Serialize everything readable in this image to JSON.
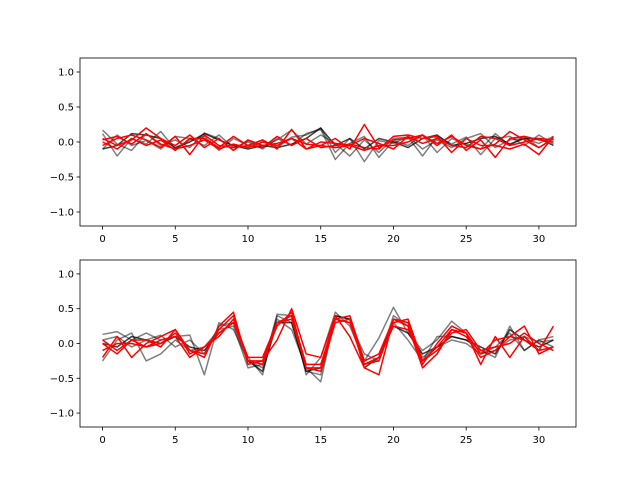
{
  "chart_data": [
    {
      "type": "line",
      "xlim": [
        -1.55,
        32.55
      ],
      "ylim": [
        -1.2,
        1.2
      ],
      "xticks": [
        0,
        5,
        10,
        15,
        20,
        25,
        30
      ],
      "yticks": [
        -1.0,
        -0.5,
        0.0,
        0.5,
        1.0
      ],
      "xtick_labels": [
        "0",
        "5",
        "10",
        "15",
        "20",
        "25",
        "30"
      ],
      "ytick_labels": [
        "−1.0",
        "−0.5",
        "0.0",
        "0.5",
        "1.0"
      ],
      "grid": false,
      "series": [
        {
          "color": "#000000",
          "opacity": 0.5,
          "values": [
            0.17,
            -0.03,
            -0.12,
            0.12,
            -0.05,
            0.03,
            -0.08,
            0.13,
            0.05,
            -0.12,
            0.02,
            -0.08,
            0.03,
            0.17,
            -0.03,
            0.1,
            -0.02,
            -0.2,
            0.03,
            -0.15,
            0.05,
            0.07,
            -0.2,
            0.08,
            -0.03,
            0.07,
            -0.18,
            0.05,
            0.08,
            -0.05,
            0.1,
            -0.03
          ]
        },
        {
          "color": "#000000",
          "opacity": 0.5,
          "values": [
            -0.1,
            0.1,
            -0.05,
            0.02,
            -0.1,
            0.08,
            0.05,
            -0.05,
            0.1,
            -0.08,
            0.0,
            -0.1,
            0.05,
            -0.05,
            0.12,
            0.18,
            -0.25,
            -0.02,
            0.08,
            -0.22,
            0.02,
            -0.05,
            0.1,
            -0.15,
            0.05,
            -0.03,
            -0.1,
            0.12,
            -0.05,
            0.08,
            -0.08,
            0.05
          ]
        },
        {
          "color": "#000000",
          "opacity": 0.5,
          "values": [
            0.12,
            -0.2,
            0.05,
            -0.03,
            0.15,
            -0.1,
            0.03,
            0.08,
            -0.12,
            0.05,
            -0.05,
            0.03,
            -0.08,
            0.07,
            0.1,
            0.2,
            -0.15,
            0.05,
            -0.28,
            0.02,
            -0.02,
            0.08,
            -0.1,
            0.03,
            -0.08,
            0.05,
            0.12,
            -0.08,
            0.03,
            0.05,
            -0.02,
            0.08
          ]
        },
        {
          "color": "#000000",
          "opacity": 0.75,
          "values": [
            -0.1,
            -0.05,
            0.12,
            0.1,
            0.05,
            -0.08,
            0.0,
            0.12,
            0.03,
            -0.05,
            -0.1,
            -0.05,
            -0.08,
            -0.03,
            0.05,
            0.2,
            -0.05,
            0.05,
            -0.1,
            0.05,
            0.0,
            -0.08,
            0.05,
            0.1,
            -0.05,
            -0.02,
            0.05,
            0.08,
            -0.03,
            0.05,
            0.05,
            -0.05
          ]
        },
        {
          "color": "#ff0000",
          "opacity": 1,
          "values": [
            0.05,
            -0.05,
            0.03,
            0.2,
            0.05,
            -0.05,
            0.1,
            -0.08,
            0.05,
            -0.12,
            0.03,
            -0.05,
            -0.02,
            0.05,
            -0.03,
            -0.05,
            0.05,
            -0.1,
            0.25,
            -0.08,
            0.03,
            0.05,
            0.1,
            -0.02,
            0.08,
            -0.05,
            -0.1,
            -0.03,
            0.15,
            0.03,
            -0.08,
            0.05
          ]
        },
        {
          "color": "#ff0000",
          "opacity": 1,
          "values": [
            -0.05,
            0.05,
            0.1,
            0.03,
            -0.08,
            0.08,
            -0.18,
            0.1,
            -0.05,
            -0.08,
            -0.05,
            -0.08,
            0.08,
            -0.05,
            0.05,
            -0.08,
            -0.05,
            -0.03,
            -0.08,
            -0.1,
            0.08,
            0.1,
            0.05,
            0.08,
            -0.15,
            0.05,
            -0.05,
            -0.05,
            -0.1,
            -0.03,
            -0.18,
            0.08
          ]
        },
        {
          "color": "#ff0000",
          "opacity": 1,
          "values": [
            0.0,
            -0.1,
            0.05,
            -0.05,
            0.03,
            -0.12,
            0.05,
            0.05,
            -0.08,
            0.08,
            -0.05,
            0.03,
            -0.1,
            0.18,
            -0.1,
            0.0,
            -0.02,
            -0.05,
            -0.12,
            -0.05,
            -0.05,
            0.0,
            0.1,
            -0.05,
            0.1,
            -0.12,
            0.03,
            -0.22,
            0.05,
            0.08,
            0.03,
            0.0
          ]
        },
        {
          "color": "#ff0000",
          "opacity": 1,
          "values": [
            0.03,
            0.08,
            -0.03,
            0.12,
            -0.03,
            -0.1,
            -0.05,
            0.03,
            -0.1,
            -0.03,
            -0.08,
            0.0,
            -0.05,
            0.05,
            -0.1,
            -0.05,
            -0.08,
            -0.05,
            0.05,
            -0.02,
            -0.1,
            0.08,
            -0.02,
            0.05,
            -0.05,
            -0.08,
            0.08,
            0.05,
            -0.05,
            0.0,
            0.05,
            0.03
          ]
        }
      ]
    },
    {
      "type": "line",
      "xlim": [
        -1.55,
        32.55
      ],
      "ylim": [
        -1.2,
        1.2
      ],
      "xticks": [
        0,
        5,
        10,
        15,
        20,
        25,
        30
      ],
      "yticks": [
        -1.0,
        -0.5,
        0.0,
        0.5,
        1.0
      ],
      "xtick_labels": [
        "0",
        "5",
        "10",
        "15",
        "20",
        "25",
        "30"
      ],
      "ytick_labels": [
        "−1.0",
        "−0.5",
        "0.0",
        "0.5",
        "1.0"
      ],
      "grid": false,
      "series": [
        {
          "color": "#000000",
          "opacity": 0.5,
          "values": [
            0.13,
            0.17,
            0.05,
            0.15,
            0.05,
            0.1,
            0.12,
            -0.45,
            0.3,
            0.2,
            -0.25,
            -0.35,
            0.42,
            0.4,
            -0.45,
            -0.2,
            0.45,
            0.25,
            -0.25,
            0.08,
            0.52,
            0.15,
            -0.1,
            0.05,
            0.32,
            0.15,
            -0.15,
            -0.1,
            0.05,
            0.1,
            0.02,
            0.05
          ]
        },
        {
          "color": "#000000",
          "opacity": 0.5,
          "values": [
            -0.25,
            0.05,
            0.15,
            -0.25,
            -0.15,
            0.05,
            -0.1,
            -0.05,
            0.2,
            0.25,
            -0.35,
            -0.3,
            0.35,
            0.2,
            -0.35,
            -0.55,
            0.4,
            0.35,
            -0.3,
            -0.2,
            0.3,
            0.05,
            -0.25,
            0.1,
            0.1,
            0.05,
            -0.1,
            -0.2,
            0.25,
            -0.1,
            0.05,
            -0.05
          ]
        },
        {
          "color": "#000000",
          "opacity": 0.5,
          "values": [
            0.05,
            0.1,
            -0.05,
            0.05,
            0.12,
            -0.05,
            0.05,
            -0.15,
            0.25,
            0.3,
            -0.2,
            -0.45,
            0.4,
            0.3,
            -0.4,
            -0.45,
            0.35,
            0.3,
            -0.15,
            -0.25,
            0.4,
            0.25,
            -0.2,
            -0.05,
            0.05,
            0.0,
            -0.15,
            -0.05,
            0.15,
            -0.1,
            0.05,
            0.1
          ]
        },
        {
          "color": "#000000",
          "opacity": 0.75,
          "values": [
            0.0,
            -0.05,
            0.1,
            0.05,
            0.0,
            0.1,
            -0.05,
            -0.1,
            0.15,
            0.3,
            -0.25,
            -0.4,
            0.3,
            0.3,
            -0.4,
            -0.35,
            0.4,
            0.35,
            -0.35,
            -0.2,
            0.25,
            0.15,
            -0.15,
            -0.05,
            0.1,
            0.05,
            -0.05,
            -0.15,
            0.2,
            0.05,
            -0.05,
            0.05
          ]
        },
        {
          "color": "#ff0000",
          "opacity": 1,
          "values": [
            -0.2,
            0.1,
            -0.2,
            0.0,
            0.1,
            0.2,
            -0.1,
            -0.2,
            0.25,
            0.45,
            -0.3,
            -0.25,
            0.05,
            0.5,
            -0.15,
            -0.2,
            0.4,
            0.1,
            -0.35,
            -0.45,
            0.35,
            0.3,
            -0.3,
            0.0,
            0.25,
            0.15,
            -0.3,
            0.1,
            -0.2,
            0.1,
            -0.1,
            0.25
          ]
        },
        {
          "color": "#ff0000",
          "opacity": 1,
          "values": [
            0.05,
            -0.1,
            0.05,
            0.05,
            -0.05,
            0.2,
            -0.15,
            -0.05,
            0.1,
            0.35,
            -0.2,
            -0.2,
            0.3,
            0.4,
            -0.3,
            -0.3,
            0.35,
            0.4,
            -0.25,
            -0.15,
            0.35,
            0.25,
            -0.35,
            -0.15,
            0.2,
            0.15,
            -0.15,
            0.05,
            0.1,
            0.25,
            -0.15,
            -0.05
          ]
        },
        {
          "color": "#ff0000",
          "opacity": 1,
          "values": [
            -0.1,
            0.0,
            0.0,
            -0.05,
            0.05,
            0.1,
            -0.2,
            -0.05,
            0.15,
            0.3,
            -0.25,
            -0.3,
            0.3,
            0.35,
            -0.35,
            -0.35,
            0.35,
            0.3,
            -0.3,
            -0.2,
            0.25,
            0.2,
            -0.25,
            -0.05,
            0.2,
            0.1,
            -0.2,
            -0.1,
            0.1,
            0.05,
            -0.1,
            -0.05
          ]
        },
        {
          "color": "#ff0000",
          "opacity": 1,
          "values": [
            0.0,
            -0.15,
            0.05,
            -0.05,
            0.0,
            0.15,
            -0.1,
            -0.15,
            0.2,
            0.4,
            -0.25,
            -0.25,
            0.25,
            0.45,
            -0.35,
            -0.4,
            0.3,
            0.35,
            -0.3,
            -0.25,
            0.3,
            0.35,
            -0.25,
            -0.1,
            0.15,
            0.2,
            -0.1,
            -0.05,
            0.0,
            0.15,
            0.0,
            -0.1
          ]
        }
      ]
    }
  ]
}
